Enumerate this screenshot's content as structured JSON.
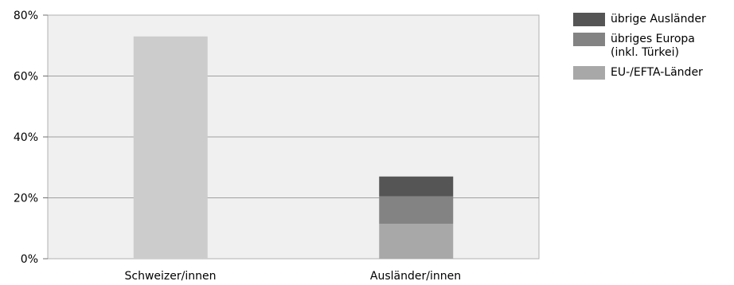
{
  "chart_data": {
    "type": "bar",
    "stacked": true,
    "categories": [
      "Schweizer/innen",
      "Ausländer/innen"
    ],
    "series": [
      {
        "name": "EU-/EFTA-Länder",
        "values": [
          0,
          11.5
        ],
        "color": "#a8a8a8"
      },
      {
        "name": "übriges Europa\n(inkl. Türkei)",
        "values": [
          0,
          9.0
        ],
        "color": "#838383"
      },
      {
        "name": "übrige Ausländer",
        "values": [
          0,
          6.5
        ],
        "color": "#555555"
      }
    ],
    "totals_only": [
      {
        "category": "Schweizer/innen",
        "value": 73,
        "color": "#cccccc"
      }
    ],
    "ylim": [
      0,
      80
    ],
    "yticks": [
      0,
      20,
      40,
      60,
      80
    ],
    "ytick_labels": [
      "0%",
      "20%",
      "40%",
      "60%",
      "80%"
    ],
    "grid": true,
    "legend_position": "right",
    "plot_background": "#f0f0f0",
    "title": "",
    "xlabel": "",
    "ylabel": ""
  },
  "legend": [
    {
      "label": "übrige Ausländer",
      "color": "#555555"
    },
    {
      "label": "übriges Europa\n(inkl. Türkei)",
      "color": "#838383"
    },
    {
      "label": "EU-/EFTA-Länder",
      "color": "#a8a8a8"
    }
  ]
}
